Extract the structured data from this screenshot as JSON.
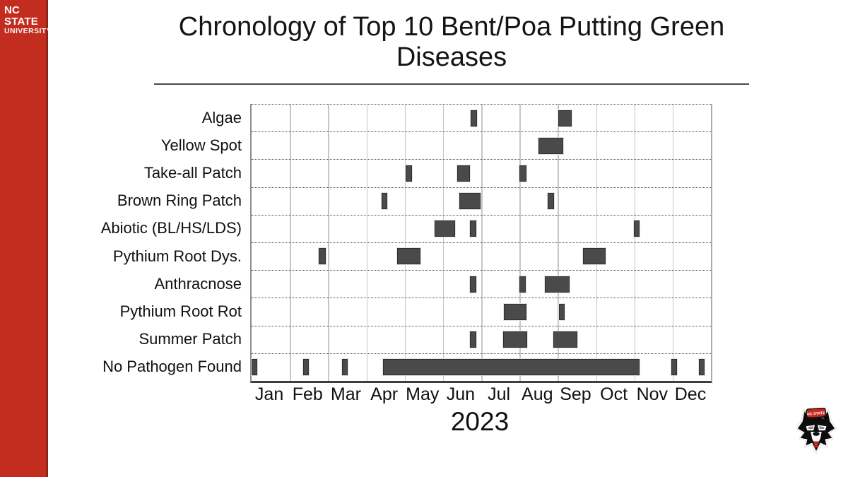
{
  "brand": {
    "line1": "NC STATE",
    "line2": "UNIVERSITY"
  },
  "title": {
    "text": "Chronology of Top 10 Bent/Poa Putting Green Diseases"
  },
  "footer": {
    "year": "2023"
  },
  "colors": {
    "brand_red": "#C22D20",
    "bar_fill": "#4A4A4A",
    "bar_border": "#2F2F2F",
    "gridline": "#C6C6C6",
    "axis_line": "#3E3E3E"
  },
  "logo": {
    "wolf_hat_text": "NC STATE"
  },
  "chart_data": {
    "type": "bar",
    "subtype": "gantt-timeline",
    "title": "Chronology of Top 10 Bent/Poa Putting Green Diseases",
    "xlabel": "2023",
    "ylabel": "",
    "x_unit": "month of 2023 (0 = Jan 1, 12 = Dec 31)",
    "x_range": [
      0,
      12
    ],
    "grid": "solid monthly vertical gridlines, dotted horizontal row separators",
    "legend": "none",
    "months": [
      "Jan",
      "Feb",
      "Mar",
      "Apr",
      "May",
      "Jun",
      "Jul",
      "Aug",
      "Sep",
      "Oct",
      "Nov",
      "Dec"
    ],
    "series": [
      {
        "name": "Algae",
        "bars": [
          {
            "start": 5.73,
            "end": 5.89
          },
          {
            "start": 8.02,
            "end": 8.37
          }
        ]
      },
      {
        "name": "Yellow Spot",
        "bars": [
          {
            "start": 7.5,
            "end": 8.14
          }
        ]
      },
      {
        "name": "Take-all Patch",
        "bars": [
          {
            "start": 4.02,
            "end": 4.19
          },
          {
            "start": 5.37,
            "end": 5.71
          },
          {
            "start": 6.99,
            "end": 7.18
          }
        ]
      },
      {
        "name": "Brown Ring Patch",
        "bars": [
          {
            "start": 3.39,
            "end": 3.54
          },
          {
            "start": 5.42,
            "end": 5.98
          },
          {
            "start": 7.73,
            "end": 7.9
          }
        ]
      },
      {
        "name": "Abiotic (BL/HS/LDS)",
        "bars": [
          {
            "start": 4.79,
            "end": 5.31
          },
          {
            "start": 5.71,
            "end": 5.88
          },
          {
            "start": 9.99,
            "end": 10.14
          }
        ]
      },
      {
        "name": "Pythium Root Dys.",
        "bars": [
          {
            "start": 1.76,
            "end": 1.94
          },
          {
            "start": 3.8,
            "end": 4.42
          },
          {
            "start": 8.65,
            "end": 9.25
          }
        ]
      },
      {
        "name": "Anthracnose",
        "bars": [
          {
            "start": 5.71,
            "end": 5.88
          },
          {
            "start": 7.0,
            "end": 7.16
          },
          {
            "start": 7.67,
            "end": 8.31
          }
        ]
      },
      {
        "name": "Pythium Root Rot",
        "bars": [
          {
            "start": 6.59,
            "end": 7.19
          },
          {
            "start": 8.03,
            "end": 8.18
          }
        ]
      },
      {
        "name": "Summer Patch",
        "bars": [
          {
            "start": 5.7,
            "end": 5.88
          },
          {
            "start": 6.57,
            "end": 7.2
          },
          {
            "start": 7.88,
            "end": 8.51
          }
        ]
      },
      {
        "name": "No Pathogen Found",
        "bars": [
          {
            "start": 0.0,
            "end": 0.15
          },
          {
            "start": 1.34,
            "end": 1.5
          },
          {
            "start": 2.36,
            "end": 2.52
          },
          {
            "start": 3.43,
            "end": 10.13
          },
          {
            "start": 10.97,
            "end": 11.11
          },
          {
            "start": 11.69,
            "end": 11.83
          }
        ]
      }
    ]
  }
}
